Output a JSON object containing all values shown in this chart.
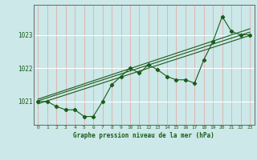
{
  "title": "Graphe pression niveau de la mer (hPa)",
  "bg_color": "#cce8e8",
  "line_color": "#1a5c1a",
  "xlim": [
    -0.5,
    23.5
  ],
  "ylim": [
    1020.3,
    1023.9
  ],
  "yticks": [
    1021,
    1022,
    1023
  ],
  "xticks": [
    0,
    1,
    2,
    3,
    4,
    5,
    6,
    7,
    8,
    9,
    10,
    11,
    12,
    13,
    14,
    15,
    16,
    17,
    18,
    19,
    20,
    21,
    22,
    23
  ],
  "series1_x": [
    0,
    1,
    2,
    3,
    4,
    5,
    6,
    7,
    8,
    9,
    10,
    11,
    12,
    13,
    14,
    15,
    16,
    17,
    18,
    19,
    20,
    21,
    22,
    23
  ],
  "series1_y": [
    1021.0,
    1021.0,
    1020.85,
    1020.75,
    1020.75,
    1020.55,
    1020.55,
    1021.0,
    1021.5,
    1021.75,
    1022.0,
    1021.85,
    1022.1,
    1021.95,
    1021.75,
    1021.65,
    1021.65,
    1021.55,
    1022.25,
    1022.8,
    1023.55,
    1023.1,
    1023.0,
    1023.0
  ],
  "trend1_x": [
    0,
    23
  ],
  "trend1_y": [
    1020.93,
    1022.98
  ],
  "trend2_x": [
    0,
    23
  ],
  "trend2_y": [
    1021.02,
    1023.08
  ],
  "trend3_x": [
    0,
    23
  ],
  "trend3_y": [
    1021.07,
    1023.18
  ],
  "vgrid_color": "#e8a0a0",
  "hgrid_color": "#ffffff"
}
